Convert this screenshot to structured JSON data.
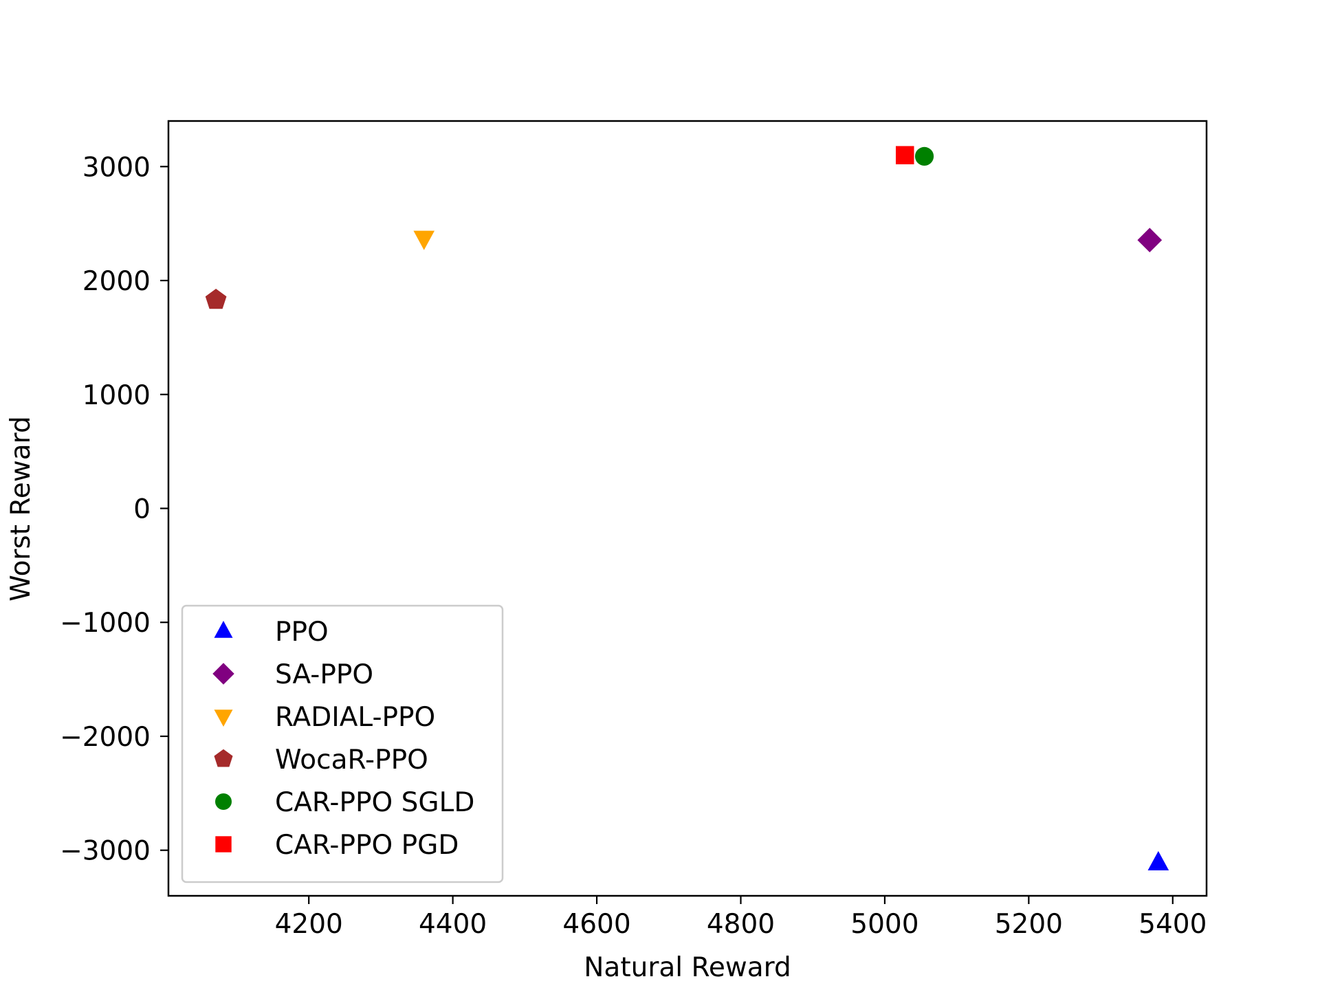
{
  "chart_data": {
    "type": "scatter",
    "title": "",
    "xlabel": "Natural Reward",
    "ylabel": "Worst Reward",
    "xlim": [
      4005,
      5447
    ],
    "ylim": [
      -3400,
      3400
    ],
    "xticks": [
      4200,
      4400,
      4600,
      4800,
      5000,
      5200,
      5400
    ],
    "yticks": [
      -3000,
      -2000,
      -1000,
      0,
      1000,
      2000,
      3000
    ],
    "xtick_labels": [
      "4200",
      "4400",
      "4600",
      "4800",
      "5000",
      "5200",
      "5400"
    ],
    "ytick_labels": [
      "−3000",
      "−2000",
      "−1000",
      "0",
      "1000",
      "2000",
      "3000"
    ],
    "grid": false,
    "legend_position": "lower-left",
    "series": [
      {
        "name": "PPO",
        "marker": "triangle-up",
        "color": "#0000ff",
        "points": [
          {
            "x": 5380,
            "y": -3110
          }
        ]
      },
      {
        "name": "SA-PPO",
        "marker": "diamond",
        "color": "#800080",
        "points": [
          {
            "x": 5368,
            "y": 2355
          }
        ]
      },
      {
        "name": "RADIAL-PPO",
        "marker": "triangle-down",
        "color": "#ffa500",
        "points": [
          {
            "x": 4360,
            "y": 2370
          }
        ]
      },
      {
        "name": "WocaR-PPO",
        "marker": "pentagon",
        "color": "#a52a2a",
        "points": [
          {
            "x": 4071,
            "y": 1830
          }
        ]
      },
      {
        "name": "CAR-PPO SGLD",
        "marker": "circle",
        "color": "#008000",
        "points": [
          {
            "x": 5055,
            "y": 3090
          }
        ]
      },
      {
        "name": "CAR-PPO PGD",
        "marker": "square",
        "color": "#ff0000",
        "points": [
          {
            "x": 5028,
            "y": 3100
          }
        ]
      }
    ]
  }
}
